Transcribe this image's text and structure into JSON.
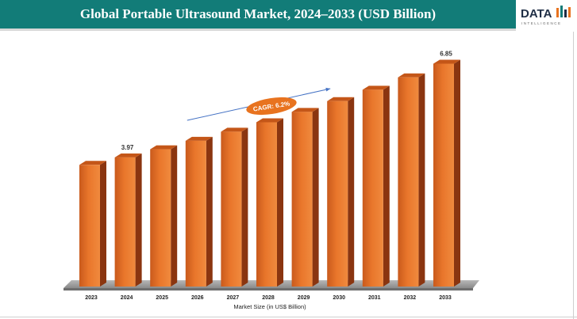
{
  "header": {
    "title": "Global Portable Ultrasound Market, 2024–2033 (USD Billion)",
    "logo_text": "DATA",
    "logo_subtext": "INTELLIGENCE"
  },
  "colors": {
    "header_bg": "#127c78",
    "bar_front": "#e9762b",
    "bar_side": "#8a3510",
    "bar_top": "#c45618",
    "floor": "#8a8a8a",
    "cagr_bubble": "#e8731f",
    "trend_arrow": "#4472c4"
  },
  "chart_data": {
    "type": "bar",
    "categories": [
      "2023",
      "2024",
      "2025",
      "2026",
      "2027",
      "2028",
      "2029",
      "2030",
      "2031",
      "2032",
      "2033"
    ],
    "values": [
      3.74,
      3.97,
      4.22,
      4.48,
      4.76,
      5.05,
      5.37,
      5.7,
      6.05,
      6.43,
      6.85
    ],
    "data_labels": [
      {
        "category": "2024",
        "text": "3.97"
      },
      {
        "category": "2033",
        "text": "6.85"
      }
    ],
    "annotation": "CAGR: 6.2%",
    "xlabel": "Market Size (in US$ Billion)",
    "ylabel": "",
    "ylim": [
      0,
      7.3
    ],
    "grid": false,
    "legend": "none",
    "style": "3d-columns"
  }
}
